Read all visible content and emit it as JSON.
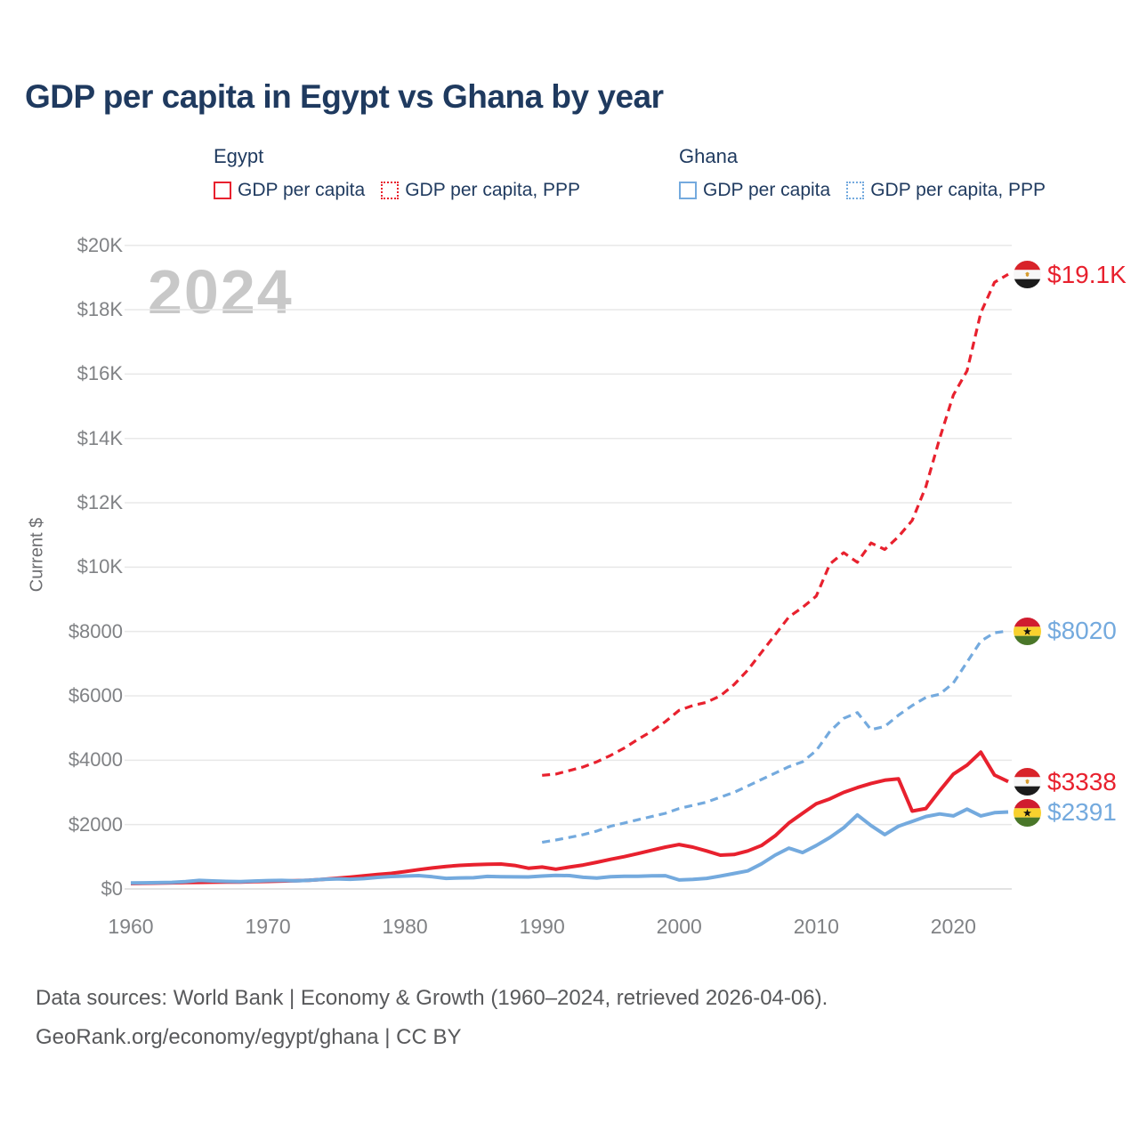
{
  "title": "GDP per capita in Egypt vs Ghana by year",
  "watermark": "2024",
  "legend": {
    "egypt": {
      "label": "Egypt",
      "gdp": "GDP per capita",
      "ppp": "GDP per capita, PPP"
    },
    "ghana": {
      "label": "Ghana",
      "gdp": "GDP per capita",
      "ppp": "GDP per capita, PPP"
    }
  },
  "colors": {
    "egypt": "#e8212e",
    "ghana": "#74aade",
    "title_navy": "#1f3a5f",
    "axis_gray": "#808285",
    "grid": "#e8e8e8",
    "zero_line": "#d8d8d8",
    "watermark": "#c8c8c8",
    "footer": "#58595b"
  },
  "y_axis": {
    "title": "Current $",
    "ticks": [
      "$20K",
      "$18K",
      "$16K",
      "$14K",
      "$12K",
      "$10K",
      "$8000",
      "$6000",
      "$4000",
      "$2000",
      "$0"
    ],
    "tick_values": [
      20000,
      18000,
      16000,
      14000,
      12000,
      10000,
      8000,
      6000,
      4000,
      2000,
      0
    ]
  },
  "x_axis": {
    "ticks": [
      "1960",
      "1970",
      "1980",
      "1990",
      "2000",
      "2010",
      "2020"
    ],
    "tick_values": [
      1960,
      1970,
      1980,
      1990,
      2000,
      2010,
      2020
    ]
  },
  "end_labels": [
    {
      "country": "egypt",
      "text": "$19.1K",
      "value": 19100,
      "series": 1
    },
    {
      "country": "ghana",
      "text": "$8020",
      "value": 8020,
      "series": 3
    },
    {
      "country": "egypt",
      "text": "$3338",
      "value": 3338,
      "series": 0
    },
    {
      "country": "ghana",
      "text": "$2391",
      "value": 2391,
      "series": 2
    }
  ],
  "footer": {
    "line1": "Data sources: World Bank | Economy & Growth (1960–2024, retrieved 2026-04-06).",
    "line2": "GeoRank.org/economy/egypt/ghana | CC BY"
  },
  "chart_data": {
    "type": "line",
    "title": "GDP per capita in Egypt vs Ghana by year",
    "xlabel": "",
    "ylabel": "Current $",
    "xlim": [
      1960,
      2024
    ],
    "ylim": [
      0,
      20000
    ],
    "grid": "horizontal",
    "legend_position": "top",
    "series": [
      {
        "name": "Egypt GDP per capita",
        "color": "#e8212e",
        "style": "solid",
        "x_start": 1960,
        "x_step": 1,
        "values": [
          170,
          176,
          182,
          190,
          198,
          205,
          210,
          212,
          216,
          226,
          236,
          246,
          256,
          272,
          300,
          332,
          368,
          410,
          452,
          485,
          540,
          600,
          652,
          700,
          732,
          752,
          768,
          775,
          730,
          645,
          680,
          615,
          680,
          745,
          830,
          920,
          1005,
          1100,
          1200,
          1300,
          1380,
          1300,
          1180,
          1050,
          1070,
          1180,
          1350,
          1650,
          2050,
          2350,
          2650,
          2800,
          3000,
          3150,
          3280,
          3380,
          3420,
          2420,
          2500,
          3050,
          3570,
          3850,
          4250,
          3540,
          3338
        ]
      },
      {
        "name": "Egypt GDP per capita, PPP",
        "color": "#e8212e",
        "style": "dashed",
        "x_start": 1990,
        "x_step": 1,
        "values": [
          3530,
          3570,
          3680,
          3790,
          3950,
          4150,
          4380,
          4650,
          4900,
          5200,
          5550,
          5700,
          5800,
          6000,
          6350,
          6800,
          7350,
          7900,
          8450,
          8750,
          9100,
          10100,
          10450,
          10150,
          10750,
          10550,
          10950,
          11450,
          12500,
          14000,
          15350,
          16100,
          17900,
          18850,
          19100
        ]
      },
      {
        "name": "Ghana GDP per capita",
        "color": "#74aade",
        "style": "solid",
        "x_start": 1960,
        "x_step": 1,
        "values": [
          185,
          190,
          196,
          206,
          230,
          265,
          250,
          236,
          226,
          246,
          260,
          266,
          252,
          272,
          300,
          312,
          302,
          322,
          360,
          386,
          400,
          415,
          380,
          330,
          342,
          348,
          390,
          382,
          376,
          372,
          400,
          420,
          415,
          362,
          336,
          380,
          396,
          392,
          410,
          412,
          280,
          300,
          330,
          400,
          480,
          560,
          780,
          1050,
          1270,
          1130,
          1350,
          1600,
          1900,
          2300,
          1970,
          1690,
          1950,
          2100,
          2250,
          2330,
          2270,
          2480,
          2270,
          2370,
          2391
        ]
      },
      {
        "name": "Ghana GDP per capita, PPP",
        "color": "#74aade",
        "style": "dashed",
        "x_start": 1990,
        "x_step": 1,
        "values": [
          1450,
          1520,
          1600,
          1690,
          1800,
          1950,
          2050,
          2150,
          2250,
          2350,
          2500,
          2600,
          2700,
          2850,
          3000,
          3200,
          3400,
          3600,
          3800,
          3950,
          4300,
          4900,
          5300,
          5480,
          4950,
          5050,
          5400,
          5700,
          5950,
          6050,
          6400,
          7050,
          7700,
          7960,
          8020
        ]
      }
    ]
  }
}
